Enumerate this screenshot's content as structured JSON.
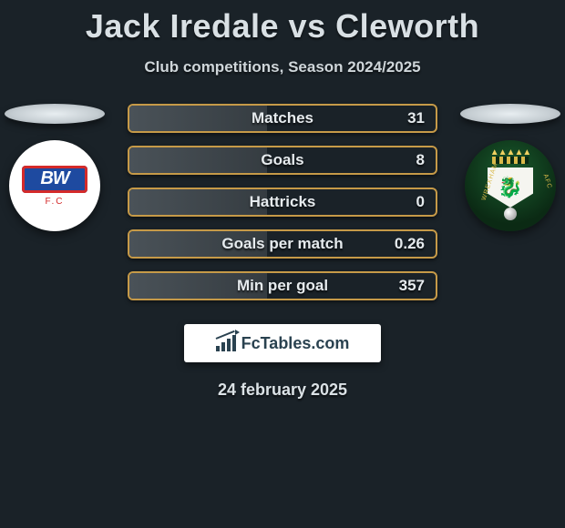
{
  "title": "Jack Iredale vs Cleworth",
  "subtitle": "Club competitions, Season 2024/2025",
  "date": "24 february 2025",
  "brand_text": "FcTables.com",
  "colors": {
    "background": "#1a2228",
    "bar_border": "#c69a48",
    "text": "#e6ebee"
  },
  "left_club": {
    "name": "bolton",
    "initials": "BW",
    "sub": "F.C"
  },
  "right_club": {
    "name": "wrexham",
    "arc_left": "WREXHAM",
    "arc_right": "AFC"
  },
  "stats": [
    {
      "label": "Matches",
      "value": "31",
      "fill_pct": 45
    },
    {
      "label": "Goals",
      "value": "8",
      "fill_pct": 45
    },
    {
      "label": "Hattricks",
      "value": "0",
      "fill_pct": 45
    },
    {
      "label": "Goals per match",
      "value": "0.26",
      "fill_pct": 45
    },
    {
      "label": "Min per goal",
      "value": "357",
      "fill_pct": 45
    }
  ]
}
